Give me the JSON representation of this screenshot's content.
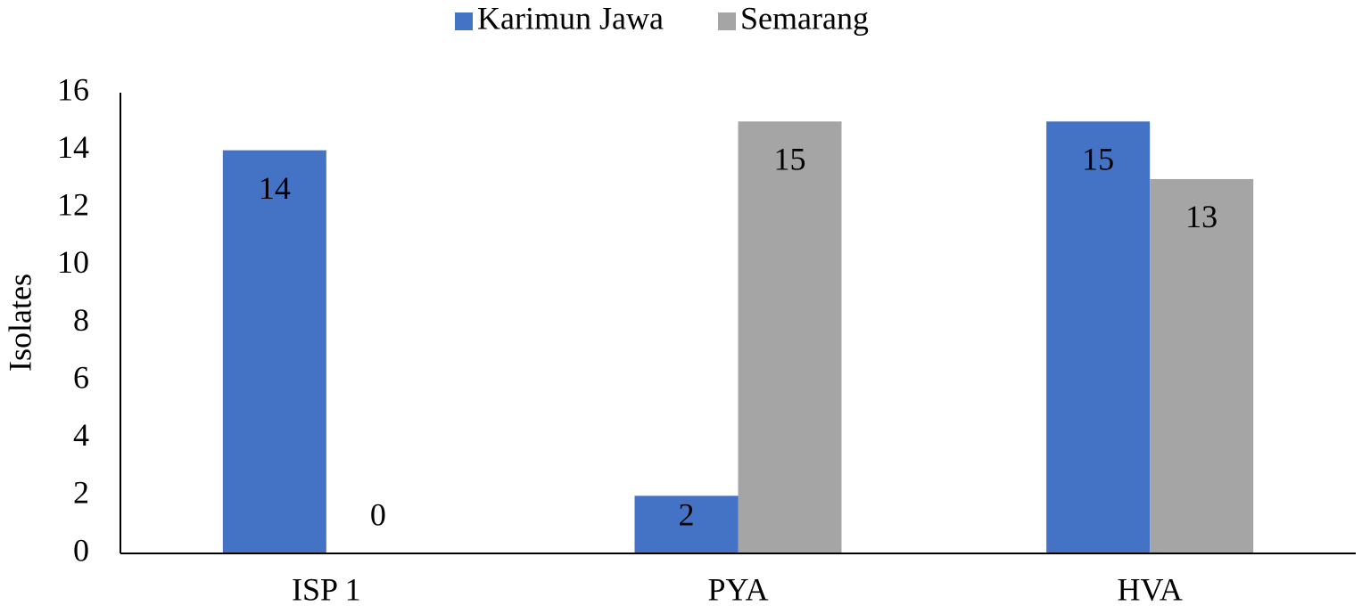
{
  "chart_data": {
    "type": "bar",
    "y_label": "Isolates",
    "categories": [
      "ISP 1",
      "PYA",
      "HVA"
    ],
    "series": [
      {
        "name": "Karimun Jawa",
        "color": "#4472c4",
        "values": [
          14,
          2,
          15
        ]
      },
      {
        "name": "Semarang",
        "color": "#a5a5a5",
        "values": [
          0,
          15,
          13
        ]
      }
    ],
    "ylim": [
      0,
      16
    ],
    "yticks": [
      0,
      2,
      4,
      6,
      8,
      10,
      12,
      14,
      16
    ],
    "grid": false,
    "legend": "top",
    "data_labels": true
  }
}
